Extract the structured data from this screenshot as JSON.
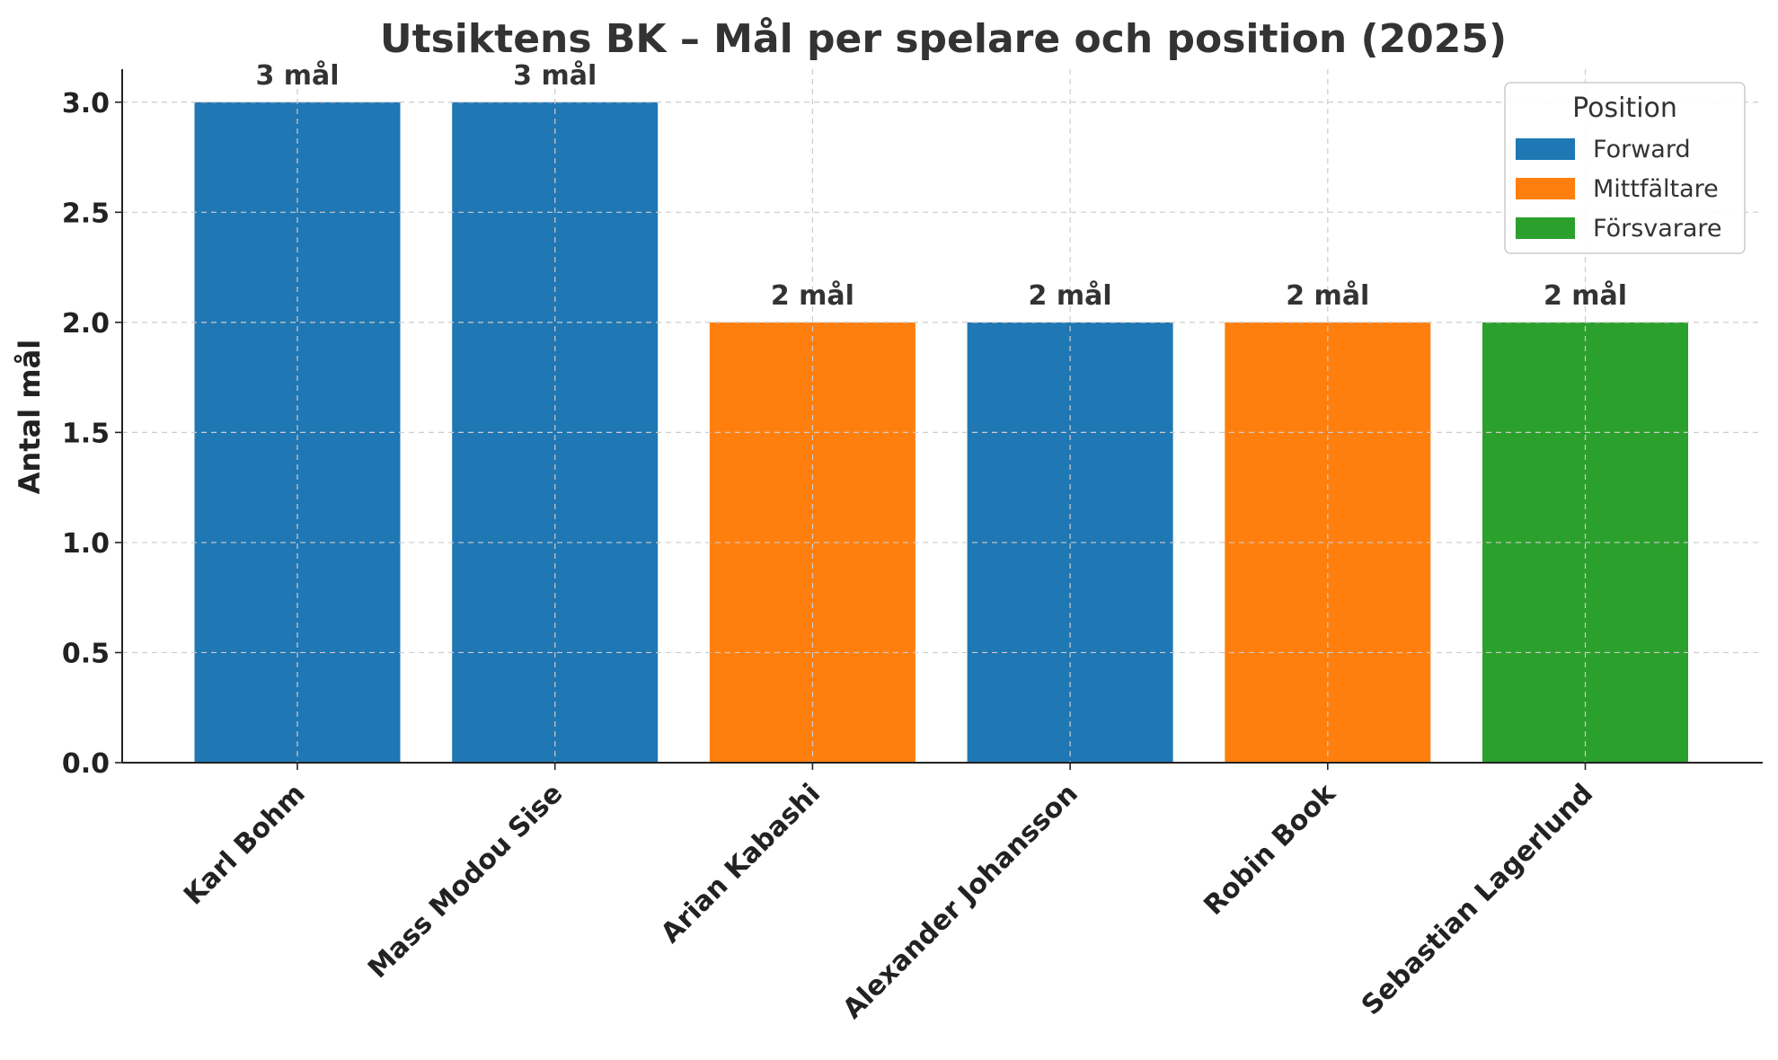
{
  "chart_data": {
    "type": "bar",
    "title": "Utsiktens BK – Mål per spelare och position (2025)",
    "ylabel": "Antal mål",
    "xlabel": "",
    "ylim": [
      0,
      3.15
    ],
    "yticks": [
      "0.0",
      "0.5",
      "1.0",
      "1.5",
      "2.0",
      "2.5",
      "3.0"
    ],
    "grid": true,
    "legend": {
      "title": "Position",
      "placement": "top-right",
      "entries": [
        {
          "label": "Forward",
          "color": "#1f77b4"
        },
        {
          "label": "Mittfältare",
          "color": "#ff7f0e"
        },
        {
          "label": "Försvarare",
          "color": "#2ca02c"
        }
      ]
    },
    "categories": [
      "Karl Bohm",
      "Mass Modou Sise",
      "Arian Kabashi",
      "Alexander Johansson",
      "Robin Book",
      "Sebastian Lagerlund"
    ],
    "values": [
      3,
      3,
      2,
      2,
      2,
      2
    ],
    "positions": [
      "Forward",
      "Forward",
      "Mittfältare",
      "Forward",
      "Mittfältare",
      "Försvarare"
    ],
    "bar_labels": [
      "3 mål",
      "3 mål",
      "2 mål",
      "2 mål",
      "2 mål",
      "2 mål"
    ]
  }
}
